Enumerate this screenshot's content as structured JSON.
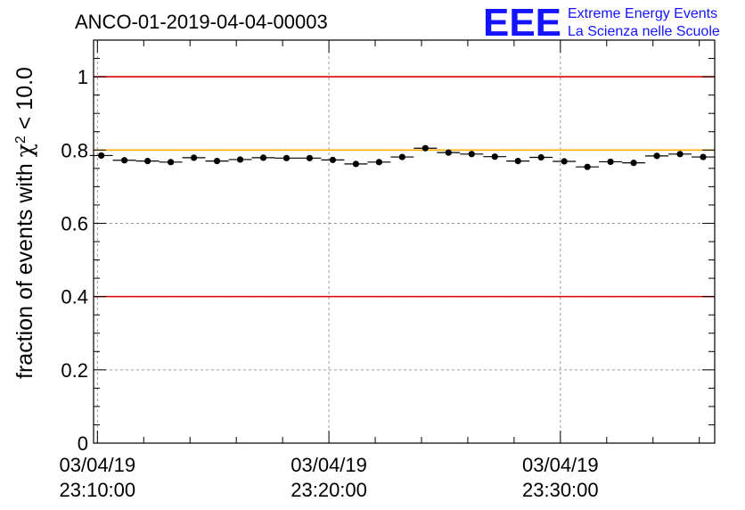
{
  "logo": {
    "mark": "EEE",
    "line1": "Extreme Energy Events",
    "line2": "La Scienza nelle Scuole"
  },
  "colors": {
    "logo": "#1414ff",
    "threshold_red": "#e00000",
    "reference_orange": "#ffb000",
    "grid": "#9a9a9a",
    "marker": "#000000"
  },
  "chart_data": {
    "type": "scatter",
    "title": "ANCO-01-2019-04-04-00003",
    "ylabel_prefix": "fraction of events with ",
    "ylabel_symbol": "χ",
    "ylabel_sup": "2",
    "ylabel_suffix": " < 10.0",
    "ylim": [
      0,
      1.1
    ],
    "xlim": [
      "2019-04-03 23:09:50",
      "2019-04-03 23:36:40"
    ],
    "grid": true,
    "y_ticks": [
      {
        "value": 0,
        "label": "0"
      },
      {
        "value": 0.2,
        "label": "0.2"
      },
      {
        "value": 0.4,
        "label": "0.4"
      },
      {
        "value": 0.6,
        "label": "0.6"
      },
      {
        "value": 0.8,
        "label": "0.8"
      },
      {
        "value": 1,
        "label": "1"
      }
    ],
    "x_ticks": [
      {
        "time": "2019-04-03 23:10:00",
        "date_label": "03/04/19",
        "time_label": "23:10:00"
      },
      {
        "time": "2019-04-03 23:20:00",
        "date_label": "03/04/19",
        "time_label": "23:20:00"
      },
      {
        "time": "2019-04-03 23:30:00",
        "date_label": "03/04/19",
        "time_label": "23:30:00"
      }
    ],
    "reference_lines": [
      {
        "y": 1.0,
        "color": "#e00000"
      },
      {
        "y": 0.8,
        "color": "#ffb000"
      },
      {
        "y": 0.4,
        "color": "#e00000"
      }
    ],
    "bin_width_minutes": 1,
    "series": [
      {
        "points": [
          {
            "x": "2019-04-03 23:10:10",
            "y": 0.785
          },
          {
            "x": "2019-04-03 23:11:10",
            "y": 0.772
          },
          {
            "x": "2019-04-03 23:12:10",
            "y": 0.77
          },
          {
            "x": "2019-04-03 23:13:10",
            "y": 0.767
          },
          {
            "x": "2019-04-03 23:14:10",
            "y": 0.779
          },
          {
            "x": "2019-04-03 23:15:10",
            "y": 0.77
          },
          {
            "x": "2019-04-03 23:16:10",
            "y": 0.774
          },
          {
            "x": "2019-04-03 23:17:10",
            "y": 0.779
          },
          {
            "x": "2019-04-03 23:18:10",
            "y": 0.778
          },
          {
            "x": "2019-04-03 23:19:10",
            "y": 0.778
          },
          {
            "x": "2019-04-03 23:20:10",
            "y": 0.773
          },
          {
            "x": "2019-04-03 23:21:10",
            "y": 0.762
          },
          {
            "x": "2019-04-03 23:22:10",
            "y": 0.767
          },
          {
            "x": "2019-04-03 23:23:10",
            "y": 0.781
          },
          {
            "x": "2019-04-03 23:24:10",
            "y": 0.805
          },
          {
            "x": "2019-04-03 23:25:10",
            "y": 0.793
          },
          {
            "x": "2019-04-03 23:26:10",
            "y": 0.789
          },
          {
            "x": "2019-04-03 23:27:10",
            "y": 0.782
          },
          {
            "x": "2019-04-03 23:28:10",
            "y": 0.77
          },
          {
            "x": "2019-04-03 23:29:10",
            "y": 0.78
          },
          {
            "x": "2019-04-03 23:30:10",
            "y": 0.769
          },
          {
            "x": "2019-04-03 23:31:10",
            "y": 0.754
          },
          {
            "x": "2019-04-03 23:32:10",
            "y": 0.768
          },
          {
            "x": "2019-04-03 23:33:10",
            "y": 0.765
          },
          {
            "x": "2019-04-03 23:34:10",
            "y": 0.784
          },
          {
            "x": "2019-04-03 23:35:10",
            "y": 0.789
          },
          {
            "x": "2019-04-03 23:36:10",
            "y": 0.781
          }
        ]
      }
    ]
  }
}
